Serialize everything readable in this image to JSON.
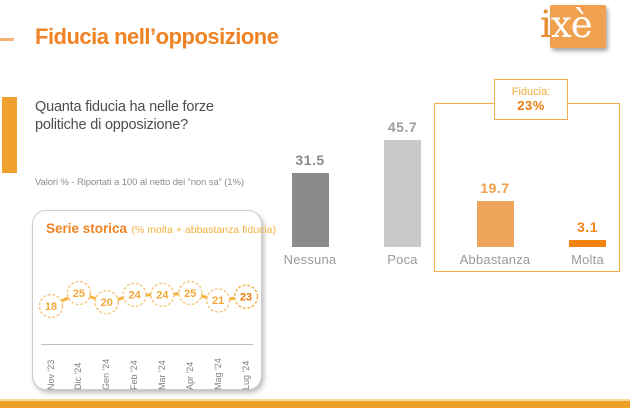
{
  "header": {
    "title": "Fiducia nell’opposizione",
    "question": "Quanta fiducia ha nelle forze\npolitiche di opposizione?",
    "note": "Valori % - Riportati a 100 al netto dei “non sa” (1%)"
  },
  "logo": {
    "part_i": "i",
    "part_xe": "xè"
  },
  "fiducia_box": {
    "label": "Fiducia:",
    "value": "23%"
  },
  "chart_data": [
    {
      "type": "bar",
      "title": "Quanta fiducia ha nelle forze politiche di opposizione?",
      "categories": [
        "Nessuna",
        "Poca",
        "Abbastanza",
        "Molta"
      ],
      "values": [
        31.5,
        45.7,
        19.7,
        3.1
      ],
      "value_labels": [
        "31.5",
        "45.7",
        "19.7",
        "3.1"
      ],
      "bar_colors": [
        "#8B8B8B",
        "#C9C9C9",
        "#EFA45C",
        "#F3830F"
      ],
      "value_label_colors": [
        "#8A8A8A",
        "#9C9C9C",
        "#EFA049",
        "#F3830F"
      ],
      "xlabel": "",
      "ylabel": "Valori %",
      "ylim": [
        0,
        50
      ],
      "grid": false,
      "annotation": "Fiducia: 23% (Abbastanza + Molta)"
    },
    {
      "type": "line",
      "title": "Serie storica",
      "subtitle": "(% molta + abbastanza fiducia)",
      "x": [
        "Nov '23",
        "Dic '24",
        "Gen '24",
        "Feb '24",
        "Mar '24",
        "Apr '24",
        "Mag '24",
        "Lug '24"
      ],
      "values": [
        18,
        25,
        20,
        24,
        24,
        25,
        21,
        23
      ],
      "highlight_last_value": 23,
      "line_color": "#F5B43F",
      "marker": "dashed-circle",
      "value_color": "#F2A837",
      "highlight_color": "#E8790A"
    }
  ],
  "colors": {
    "accent_orange": "#EF8222",
    "light_orange": "#F5B041",
    "bar_orange": "#EFA45C",
    "bar_dark_orange": "#F3830F",
    "bar_dark_gray": "#8B8B8B",
    "bar_light_gray": "#C9C9C9",
    "bracket_border": "#F2AC4E",
    "bottom_strip": "#EEA127",
    "logo_square": "#EFA14F"
  }
}
